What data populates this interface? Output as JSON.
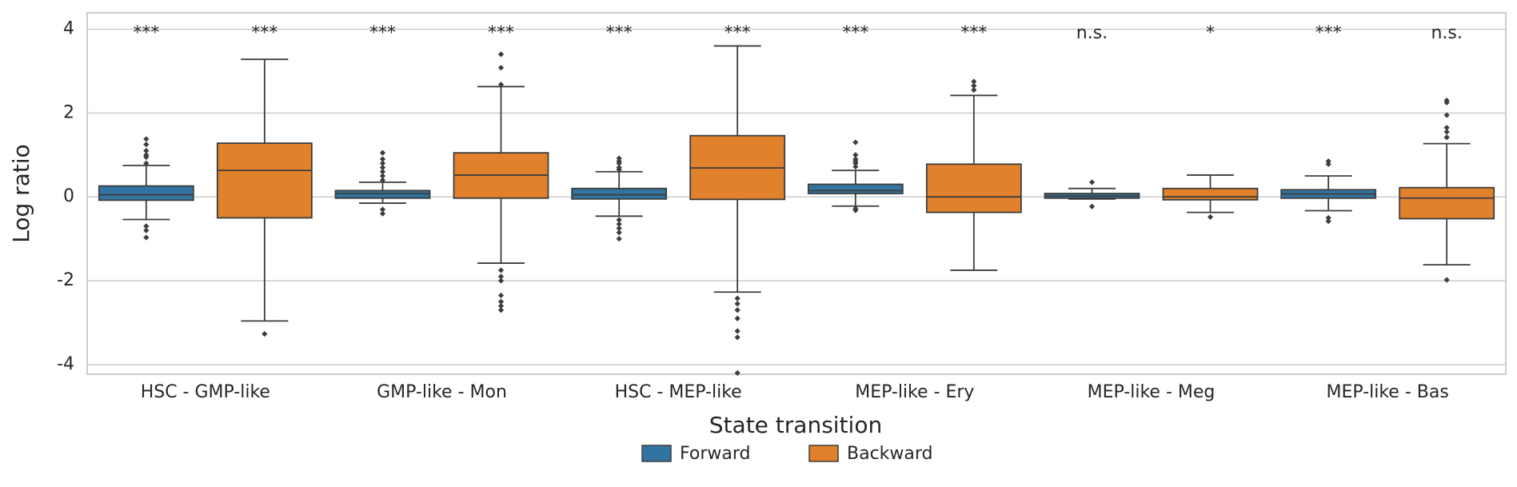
{
  "chart_data": {
    "type": "box",
    "xlabel": "State transition",
    "ylabel": "Log ratio",
    "categories": [
      "HSC - GMP-like",
      "GMP-like - Mon",
      "HSC - MEP-like",
      "MEP-like - Ery",
      "MEP-like - Meg",
      "MEP-like - Bas"
    ],
    "ylim": [
      -4.23,
      4.39
    ],
    "yticks": [
      -4,
      -2,
      0,
      2,
      4
    ],
    "grid": true,
    "series": [
      {
        "name": "Forward",
        "color": "#3274a1",
        "annotations": [
          "***",
          "***",
          "***",
          "***",
          "n.s.",
          "***"
        ],
        "boxes": [
          {
            "whislo": -0.54,
            "q1": -0.08,
            "med": 0.05,
            "q3": 0.26,
            "whishi": 0.75,
            "outliers": [
              1.38,
              1.25,
              1.1,
              1.0,
              0.95,
              0.8,
              -0.7,
              -0.8,
              -0.97
            ]
          },
          {
            "whislo": -0.15,
            "q1": -0.03,
            "med": 0.08,
            "q3": 0.15,
            "whishi": 0.35,
            "outliers": [
              1.05,
              0.9,
              0.8,
              0.7,
              0.6,
              0.5,
              0.4,
              -0.3,
              -0.4
            ]
          },
          {
            "whislo": -0.46,
            "q1": -0.05,
            "med": 0.05,
            "q3": 0.2,
            "whishi": 0.6,
            "outliers": [
              0.92,
              0.85,
              0.8,
              0.7,
              0.65,
              -0.55,
              -0.65,
              -0.75,
              -0.85,
              -1.0
            ]
          },
          {
            "whislo": -0.22,
            "q1": 0.08,
            "med": 0.15,
            "q3": 0.3,
            "whishi": 0.63,
            "outliers": [
              1.3,
              1.0,
              0.9,
              0.85,
              0.8,
              0.72,
              -0.28,
              -0.32
            ]
          },
          {
            "whislo": -0.05,
            "q1": -0.03,
            "med": 0.02,
            "q3": 0.08,
            "whishi": 0.2,
            "outliers": [
              0.35,
              -0.23
            ]
          },
          {
            "whislo": -0.33,
            "q1": -0.03,
            "med": 0.07,
            "q3": 0.17,
            "whishi": 0.5,
            "outliers": [
              0.85,
              0.78,
              -0.5,
              -0.58
            ]
          }
        ]
      },
      {
        "name": "Backward",
        "color": "#e1812c",
        "annotations": [
          "***",
          "***",
          "***",
          "***",
          "*",
          "n.s."
        ],
        "boxes": [
          {
            "whislo": -2.96,
            "q1": -0.5,
            "med": 0.63,
            "q3": 1.28,
            "whishi": 3.28,
            "outliers": [
              -3.27
            ]
          },
          {
            "whislo": -1.58,
            "q1": -0.03,
            "med": 0.52,
            "q3": 1.05,
            "whishi": 2.63,
            "outliers": [
              3.4,
              3.08,
              2.68,
              -1.75,
              -1.9,
              -2.0,
              -2.35,
              -2.5,
              -2.6,
              -2.7
            ]
          },
          {
            "whislo": -2.27,
            "q1": -0.06,
            "med": 0.69,
            "q3": 1.46,
            "whishi": 3.6,
            "outliers": [
              -2.42,
              -2.55,
              -2.7,
              -2.9,
              -3.2,
              -3.35,
              -4.2
            ]
          },
          {
            "whislo": -1.75,
            "q1": -0.37,
            "med": 0.0,
            "q3": 0.78,
            "whishi": 2.42,
            "outliers": [
              2.75,
              2.65,
              2.55
            ]
          },
          {
            "whislo": -0.37,
            "q1": -0.07,
            "med": 0.0,
            "q3": 0.2,
            "whishi": 0.52,
            "outliers": [
              -0.48
            ]
          },
          {
            "whislo": -1.62,
            "q1": -0.52,
            "med": -0.03,
            "q3": 0.22,
            "whishi": 1.27,
            "outliers": [
              2.3,
              2.25,
              1.95,
              1.65,
              1.55,
              1.42,
              -1.98
            ]
          }
        ]
      }
    ]
  }
}
